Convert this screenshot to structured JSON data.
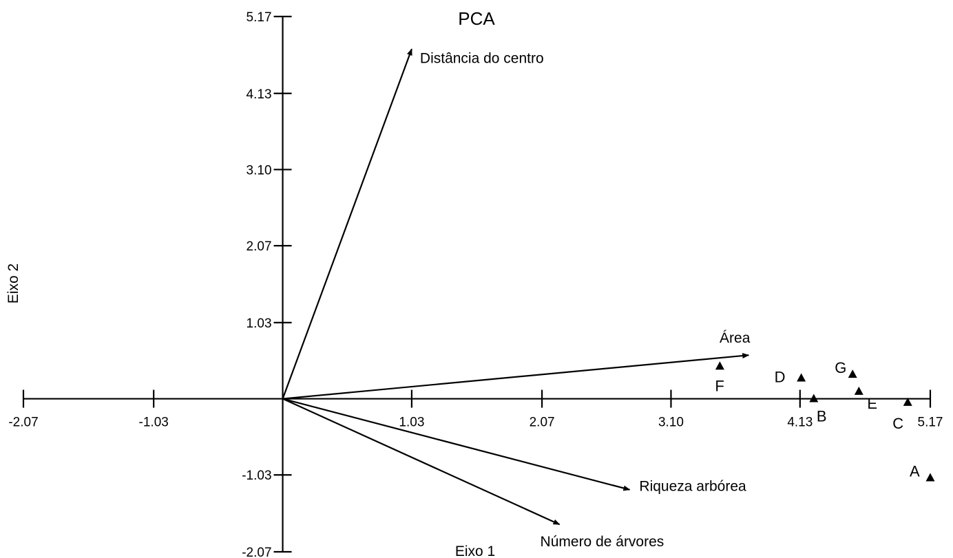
{
  "chart_data": {
    "type": "scatter",
    "title": "PCA",
    "xlabel": "Eixo 1",
    "ylabel": "Eixo 2",
    "xlim": [
      -2.07,
      5.17
    ],
    "ylim": [
      -2.07,
      5.17
    ],
    "x_ticks": [
      {
        "value": -2.07,
        "label": "-2.07"
      },
      {
        "value": -1.03,
        "label": "-1.03"
      },
      {
        "value": 1.03,
        "label": "1.03"
      },
      {
        "value": 2.07,
        "label": "2.07"
      },
      {
        "value": 3.1,
        "label": "3.10"
      },
      {
        "value": 4.13,
        "label": "4.13"
      },
      {
        "value": 5.17,
        "label": "5.17"
      }
    ],
    "y_ticks": [
      {
        "value": 5.17,
        "label": "5.17"
      },
      {
        "value": 4.13,
        "label": "4.13"
      },
      {
        "value": 3.1,
        "label": "3.10"
      },
      {
        "value": 2.07,
        "label": "2.07"
      },
      {
        "value": 1.03,
        "label": "1.03"
      },
      {
        "value": -1.03,
        "label": "-1.03"
      },
      {
        "value": -2.07,
        "label": "-2.07"
      }
    ],
    "grid": false,
    "vectors": [
      {
        "label": "Distância do centro",
        "x": 1.03,
        "y": 4.73
      },
      {
        "label": "Área",
        "x": 3.72,
        "y": 0.59
      },
      {
        "label": "Riqueza arbórea",
        "x": 2.77,
        "y": -1.23
      },
      {
        "label": "Número de árvores",
        "x": 2.21,
        "y": -1.7
      }
    ],
    "points": [
      {
        "label": "A",
        "x": 5.17,
        "y": -1.07
      },
      {
        "label": "B",
        "x": 4.24,
        "y": 0.0
      },
      {
        "label": "C",
        "x": 4.99,
        "y": -0.05
      },
      {
        "label": "D",
        "x": 4.14,
        "y": 0.28
      },
      {
        "label": "E",
        "x": 4.6,
        "y": 0.1
      },
      {
        "label": "F",
        "x": 3.49,
        "y": 0.44
      },
      {
        "label": "G",
        "x": 4.55,
        "y": 0.33
      }
    ]
  }
}
